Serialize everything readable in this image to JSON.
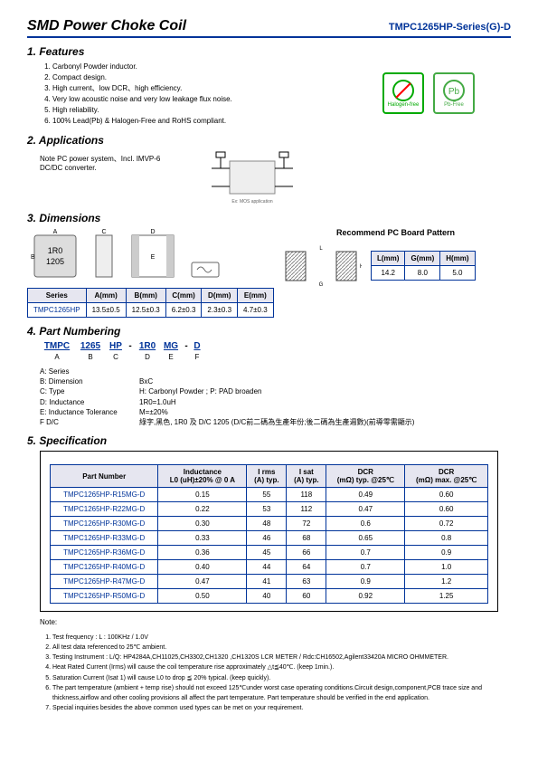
{
  "title": "SMD Power Choke Coil",
  "series": "TMPC1265HP-Series(G)-D",
  "sections": {
    "features": "1. Features",
    "applications": "2. Applications",
    "dimensions": "3. Dimensions",
    "partnum": "4. Part Numbering",
    "spec": "5. Specification"
  },
  "features": [
    "Carbonyl Powder inductor.",
    "Compact design.",
    "High current、low DCR、high efficiency.",
    "Very low acoustic noise and very low leakage flux noise.",
    "High reliability.",
    "100% Lead(Pb) & Halogen-Free and RoHS compliant."
  ],
  "badges": {
    "hf": "Halogen-free",
    "pb": "Pb-Free"
  },
  "app_note": "Note PC power system、Incl. IMVP-6 DC/DC converter.",
  "recommend_h": "Recommend PC Board Pattern",
  "dim_table": {
    "headers": [
      "Series",
      "A(mm)",
      "B(mm)",
      "C(mm)",
      "D(mm)",
      "E(mm)"
    ],
    "row": [
      "TMPC1265HP",
      "13.5±0.5",
      "12.5±0.3",
      "6.2±0.3",
      "2.3±0.3",
      "4.7±0.3"
    ]
  },
  "pcb_table": {
    "headers": [
      "L(mm)",
      "G(mm)",
      "H(mm)"
    ],
    "row": [
      "14.2",
      "8.0",
      "5.0"
    ]
  },
  "part_segments": [
    "TMPC",
    "1265",
    "HP",
    "-",
    "1R0",
    "MG",
    "-",
    "D"
  ],
  "part_labels": [
    "A",
    "B",
    "C",
    "",
    "D",
    "E",
    "",
    "F"
  ],
  "part_desc": [
    {
      "k": "A: Series",
      "v": ""
    },
    {
      "k": "B: Dimension",
      "v": "BxC"
    },
    {
      "k": "C: Type",
      "v": "H: Carbonyl Powder ; P: PAD broaden"
    },
    {
      "k": "D: Inductance",
      "v": "1R0=1.0uH"
    },
    {
      "k": "E: Inductance Tolerance",
      "v": "M=±20%"
    },
    {
      "k": "F D/C",
      "v": "綠字,黑色, 1R0 及 D/C 1205 (D/C前二碼為生產年份;後二碼為生產週數)(前導零需顯示)"
    }
  ],
  "spec_table": {
    "headers": [
      "Part Number",
      "Inductance\nL0 (uH)±20% @ 0 A",
      "I rms\n(A) typ.",
      "I sat\n(A) typ.",
      "DCR\n(mΩ) typ. @25℃",
      "DCR\n(mΩ) max. @25℃"
    ],
    "rows": [
      [
        "TMPC1265HP-R15MG-D",
        "0.15",
        "55",
        "118",
        "0.49",
        "0.60"
      ],
      [
        "TMPC1265HP-R22MG-D",
        "0.22",
        "53",
        "112",
        "0.47",
        "0.60"
      ],
      [
        "TMPC1265HP-R30MG-D",
        "0.30",
        "48",
        "72",
        "0.6",
        "0.72"
      ],
      [
        "TMPC1265HP-R33MG-D",
        "0.33",
        "46",
        "68",
        "0.65",
        "0.8"
      ],
      [
        "TMPC1265HP-R36MG-D",
        "0.36",
        "45",
        "66",
        "0.7",
        "0.9"
      ],
      [
        "TMPC1265HP-R40MG-D",
        "0.40",
        "44",
        "64",
        "0.7",
        "1.0"
      ],
      [
        "TMPC1265HP-R47MG-D",
        "0.47",
        "41",
        "63",
        "0.9",
        "1.2"
      ],
      [
        "TMPC1265HP-R50MG-D",
        "0.50",
        "40",
        "60",
        "0.92",
        "1.25"
      ]
    ]
  },
  "notes_h": "Note:",
  "notes": [
    "Test frequency : L : 100KHz / 1.0V",
    "All test data referenced to 25℃ ambient.",
    "Testing Instrument : L/Q: HP4284A,CH11025,CH3302,CH1320 ,CH1320S LCR METER / Rdc:CH16502,Agilent33420A MICRO OHMMETER.",
    "Heat Rated Current (Irms) will cause the coil temperature rise approximately △t≦40℃. (keep 1min.).",
    "Saturation Current (Isat 1) will cause L0  to drop ≦ 20% typical. (keep quickly).",
    "The part temperature (ambient + temp rise) should not exceed 125℃under worst case operating conditions.Circuit design,component,PCB trace size and thickness,airflow and other cooling provisions all affect the part temperature. Part temperature should be verified in the end application.",
    "Special inquiries besides the above common used types can be met on your requirement."
  ]
}
